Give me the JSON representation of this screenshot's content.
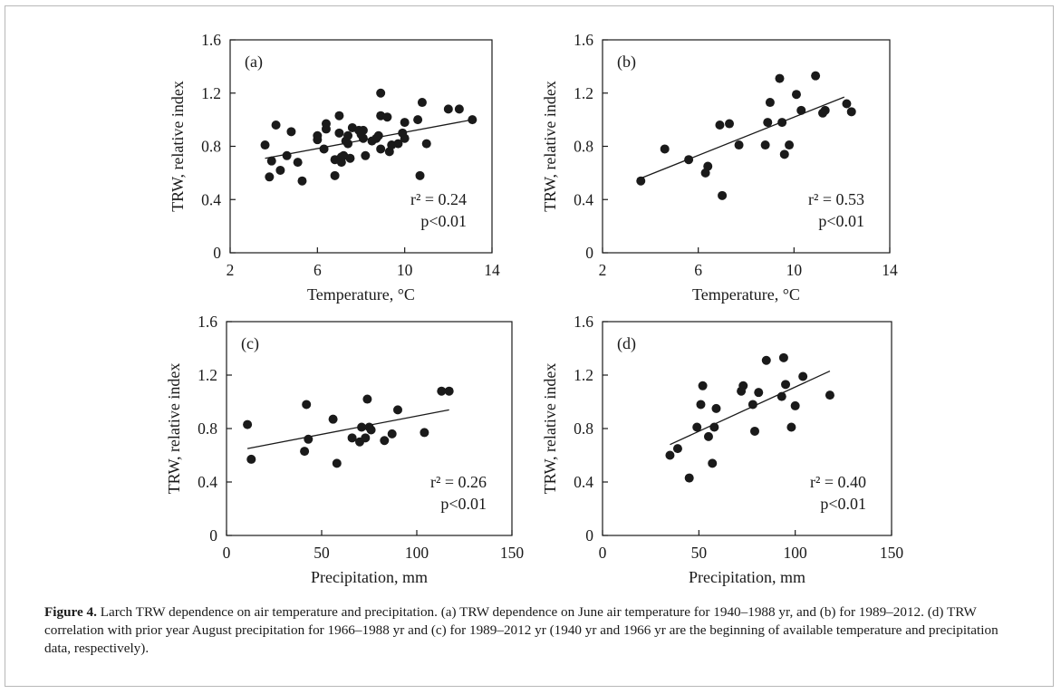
{
  "caption": {
    "label": "Figure 4.",
    "text": " Larch TRW dependence on air temperature and precipitation. (a) TRW dependence on June air temperature for 1940–1988 yr, and (b) for 1989–2012. (d) TRW correlation with prior year August precipitation for 1966–1988 yr and (c) for 1989–2012 yr (1940 yr and 1966 yr are the beginning of available temperature and precipitation data, respectively)."
  },
  "chart_data": [
    {
      "type": "scatter",
      "panel": "(a)",
      "xlabel": "Temperature, °C",
      "ylabel": "TRW, relative index",
      "xlim": [
        2,
        14
      ],
      "ylim": [
        0,
        1.6
      ],
      "xticks": [
        "2",
        "6",
        "10",
        "14"
      ],
      "yticks": [
        "0",
        "0.4",
        "0.8",
        "1.2",
        "1.6"
      ],
      "stat_r2": "r² = 0.24",
      "stat_p": "p<0.01",
      "trendline": [
        [
          3.6,
          0.71
        ],
        [
          13.1,
          1.0
        ]
      ],
      "points": [
        [
          3.6,
          0.81
        ],
        [
          3.8,
          0.57
        ],
        [
          3.9,
          0.69
        ],
        [
          4.1,
          0.96
        ],
        [
          4.3,
          0.62
        ],
        [
          4.6,
          0.73
        ],
        [
          4.8,
          0.91
        ],
        [
          5.1,
          0.68
        ],
        [
          5.3,
          0.54
        ],
        [
          6.0,
          0.85
        ],
        [
          6.0,
          0.88
        ],
        [
          6.3,
          0.78
        ],
        [
          6.4,
          0.93
        ],
        [
          6.4,
          0.97
        ],
        [
          6.8,
          0.7
        ],
        [
          6.8,
          0.58
        ],
        [
          7.0,
          1.03
        ],
        [
          7.0,
          0.9
        ],
        [
          7.1,
          0.72
        ],
        [
          7.1,
          0.68
        ],
        [
          7.2,
          0.73
        ],
        [
          7.3,
          0.84
        ],
        [
          7.4,
          0.82
        ],
        [
          7.4,
          0.88
        ],
        [
          7.5,
          0.71
        ],
        [
          7.6,
          0.94
        ],
        [
          7.9,
          0.92
        ],
        [
          8.0,
          0.89
        ],
        [
          8.1,
          0.92
        ],
        [
          8.1,
          0.86
        ],
        [
          8.2,
          0.73
        ],
        [
          8.5,
          0.84
        ],
        [
          8.7,
          0.86
        ],
        [
          8.8,
          0.88
        ],
        [
          8.9,
          1.03
        ],
        [
          8.9,
          0.78
        ],
        [
          8.9,
          1.2
        ],
        [
          9.2,
          1.02
        ],
        [
          9.3,
          0.76
        ],
        [
          9.4,
          0.81
        ],
        [
          9.7,
          0.82
        ],
        [
          9.9,
          0.9
        ],
        [
          10.0,
          0.86
        ],
        [
          10.0,
          0.98
        ],
        [
          10.6,
          1.0
        ],
        [
          10.7,
          0.58
        ],
        [
          10.8,
          1.13
        ],
        [
          11.0,
          0.82
        ],
        [
          12.0,
          1.08
        ],
        [
          12.5,
          1.08
        ],
        [
          13.1,
          1.0
        ]
      ]
    },
    {
      "type": "scatter",
      "panel": "(b)",
      "xlabel": "Temperature, °C",
      "ylabel": "TRW, relative index",
      "xlim": [
        2,
        14
      ],
      "ylim": [
        0,
        1.6
      ],
      "xticks": [
        "2",
        "6",
        "10",
        "14"
      ],
      "yticks": [
        "0",
        "0.4",
        "0.8",
        "1.2",
        "1.6"
      ],
      "stat_r2": "r² = 0.53",
      "stat_p": "p<0.01",
      "trendline": [
        [
          3.6,
          0.56
        ],
        [
          12.1,
          1.17
        ]
      ],
      "points": [
        [
          3.6,
          0.54
        ],
        [
          4.6,
          0.78
        ],
        [
          5.6,
          0.7
        ],
        [
          6.3,
          0.6
        ],
        [
          6.4,
          0.65
        ],
        [
          6.9,
          0.96
        ],
        [
          7.0,
          0.43
        ],
        [
          7.3,
          0.97
        ],
        [
          7.7,
          0.81
        ],
        [
          8.8,
          0.81
        ],
        [
          8.9,
          0.98
        ],
        [
          9.0,
          1.13
        ],
        [
          9.4,
          1.31
        ],
        [
          9.5,
          0.98
        ],
        [
          9.6,
          0.74
        ],
        [
          9.8,
          0.81
        ],
        [
          10.1,
          1.19
        ],
        [
          10.3,
          1.07
        ],
        [
          10.9,
          1.33
        ],
        [
          11.2,
          1.05
        ],
        [
          11.3,
          1.07
        ],
        [
          12.2,
          1.12
        ],
        [
          12.4,
          1.06
        ]
      ]
    },
    {
      "type": "scatter",
      "panel": "(c)",
      "xlabel": "Precipitation, mm",
      "ylabel": "TRW, relative index",
      "xlim": [
        0,
        150
      ],
      "ylim": [
        0,
        1.6
      ],
      "xticks": [
        "0",
        "50",
        "100",
        "150"
      ],
      "yticks": [
        "0",
        "0.4",
        "0.8",
        "1.2",
        "1.6"
      ],
      "stat_r2": "r² = 0.26",
      "stat_p": "p<0.01",
      "trendline": [
        [
          11,
          0.65
        ],
        [
          117,
          0.94
        ]
      ],
      "points": [
        [
          11,
          0.83
        ],
        [
          13,
          0.57
        ],
        [
          41,
          0.63
        ],
        [
          42,
          0.98
        ],
        [
          43,
          0.72
        ],
        [
          56,
          0.87
        ],
        [
          58,
          0.54
        ],
        [
          66,
          0.73
        ],
        [
          70,
          0.7
        ],
        [
          71,
          0.81
        ],
        [
          73,
          0.73
        ],
        [
          74,
          1.02
        ],
        [
          75,
          0.81
        ],
        [
          76,
          0.79
        ],
        [
          83,
          0.71
        ],
        [
          87,
          0.76
        ],
        [
          90,
          0.94
        ],
        [
          104,
          0.77
        ],
        [
          113,
          1.08
        ],
        [
          117,
          1.08
        ]
      ]
    },
    {
      "type": "scatter",
      "panel": "(d)",
      "xlabel": "Precipitation, mm",
      "ylabel": "TRW, relative index",
      "xlim": [
        0,
        150
      ],
      "ylim": [
        0,
        1.6
      ],
      "xticks": [
        "0",
        "50",
        "100",
        "150"
      ],
      "yticks": [
        "0",
        "0.4",
        "0.8",
        "1.2",
        "1.6"
      ],
      "stat_r2": "r² = 0.40",
      "stat_p": "p<0.01",
      "trendline": [
        [
          35,
          0.68
        ],
        [
          118,
          1.23
        ]
      ],
      "points": [
        [
          35,
          0.6
        ],
        [
          39,
          0.65
        ],
        [
          45,
          0.43
        ],
        [
          49,
          0.81
        ],
        [
          51,
          0.98
        ],
        [
          52,
          1.12
        ],
        [
          55,
          0.74
        ],
        [
          57,
          0.54
        ],
        [
          58,
          0.81
        ],
        [
          59,
          0.95
        ],
        [
          72,
          1.08
        ],
        [
          73,
          1.12
        ],
        [
          78,
          0.98
        ],
        [
          79,
          0.78
        ],
        [
          81,
          1.07
        ],
        [
          85,
          1.31
        ],
        [
          93,
          1.04
        ],
        [
          94,
          1.33
        ],
        [
          95,
          1.13
        ],
        [
          98,
          0.81
        ],
        [
          100,
          0.97
        ],
        [
          104,
          1.19
        ],
        [
          118,
          1.05
        ]
      ]
    }
  ]
}
